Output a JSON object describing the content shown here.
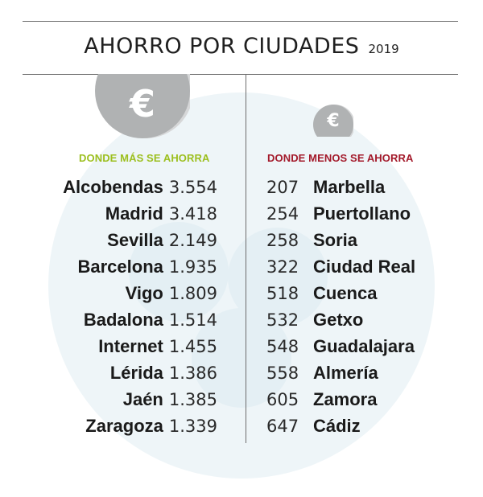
{
  "title": "AHORRO POR CIUDADES",
  "year": "2019",
  "icons": {
    "left": "euro-coin-icon",
    "right": "euro-coin-icon",
    "symbol": "€"
  },
  "colors": {
    "left_header": "#9cbf1e",
    "right_header": "#a3192a",
    "coin": "#b0b2b3",
    "watermark": "#e9f2f6"
  },
  "chart_data": [
    {
      "type": "table",
      "title": "DONDE MÁS SE AHORRA",
      "categories": [
        "Alcobendas",
        "Madrid",
        "Sevilla",
        "Barcelona",
        "Vigo",
        "Badalona",
        "Internet",
        "Lérida",
        "Jaén",
        "Zaragoza"
      ],
      "labels": [
        "3.554",
        "3.418",
        "2.149",
        "1.935",
        "1.809",
        "1.514",
        "1.455",
        "1.386",
        "1.385",
        "1.339"
      ],
      "values": [
        3554,
        3418,
        2149,
        1935,
        1809,
        1514,
        1455,
        1386,
        1385,
        1339
      ]
    },
    {
      "type": "table",
      "title": "DONDE MENOS SE AHORRA",
      "categories": [
        "Marbella",
        "Puertollano",
        "Soria",
        "Ciudad Real",
        "Cuenca",
        "Getxo",
        "Guadalajara",
        "Almería",
        "Zamora",
        "Cádiz"
      ],
      "labels": [
        "207",
        "254",
        "258",
        "322",
        "518",
        "532",
        "548",
        "558",
        "605",
        "647"
      ],
      "values": [
        207,
        254,
        258,
        322,
        518,
        532,
        548,
        558,
        605,
        647
      ]
    }
  ]
}
